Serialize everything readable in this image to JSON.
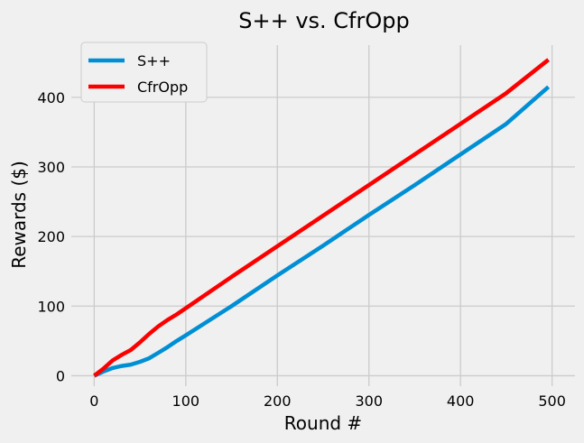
{
  "chart_data": {
    "type": "line",
    "title": "S++ vs. CfrOpp",
    "xlabel": "Round #",
    "ylabel": "Rewards ($)",
    "xlim": [
      -25,
      525
    ],
    "ylim": [
      -15,
      475
    ],
    "xticks": [
      0,
      100,
      200,
      300,
      400,
      500
    ],
    "yticks": [
      0,
      100,
      200,
      300,
      400
    ],
    "grid": true,
    "legend_position": "top-left",
    "series": [
      {
        "name": "S++",
        "color": "#008fd5",
        "points": [
          [
            0,
            0
          ],
          [
            10,
            6
          ],
          [
            20,
            11
          ],
          [
            30,
            14
          ],
          [
            40,
            16
          ],
          [
            50,
            20
          ],
          [
            60,
            25
          ],
          [
            70,
            33
          ],
          [
            80,
            41
          ],
          [
            90,
            50
          ],
          [
            100,
            58
          ],
          [
            150,
            100
          ],
          [
            200,
            144
          ],
          [
            250,
            187
          ],
          [
            300,
            231
          ],
          [
            350,
            274
          ],
          [
            400,
            318
          ],
          [
            450,
            362
          ],
          [
            496,
            415
          ]
        ]
      },
      {
        "name": "CfrOpp",
        "color": "#fc0000",
        "points": [
          [
            0,
            0
          ],
          [
            10,
            10
          ],
          [
            20,
            22
          ],
          [
            30,
            30
          ],
          [
            40,
            37
          ],
          [
            50,
            48
          ],
          [
            60,
            60
          ],
          [
            70,
            71
          ],
          [
            80,
            80
          ],
          [
            90,
            88
          ],
          [
            100,
            97
          ],
          [
            150,
            142
          ],
          [
            200,
            186
          ],
          [
            250,
            230
          ],
          [
            300,
            274
          ],
          [
            350,
            318
          ],
          [
            400,
            362
          ],
          [
            450,
            406
          ],
          [
            496,
            454
          ]
        ]
      }
    ]
  }
}
